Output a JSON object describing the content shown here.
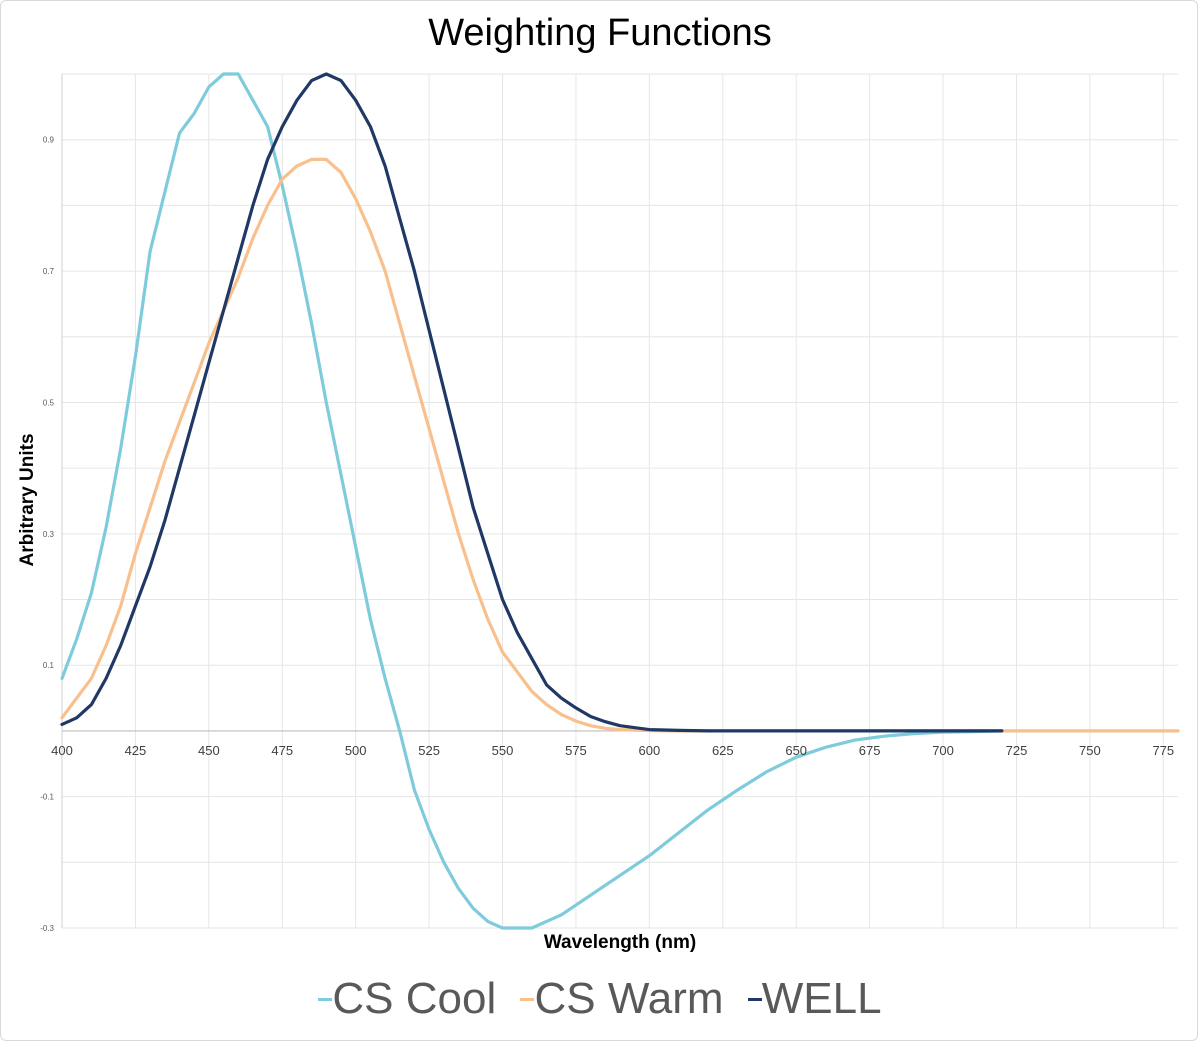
{
  "chart_data": {
    "type": "line",
    "title": "Weighting Functions",
    "xlabel": "Wavelength (nm)",
    "ylabel": "Arbitrary Units",
    "xlim": [
      400,
      780
    ],
    "ylim": [
      -0.3,
      1.0
    ],
    "x_ticks": [
      "400",
      "425",
      "450",
      "475",
      "500",
      "525",
      "550",
      "575",
      "600",
      "625",
      "650",
      "675",
      "700",
      "725",
      "750",
      "775"
    ],
    "y_ticks": [
      {
        "value": 0.9,
        "label": "0.9"
      },
      {
        "value": 0.7,
        "label": "0.7"
      },
      {
        "value": 0.5,
        "label": "0.5"
      },
      {
        "value": 0.3,
        "label": "0.3"
      },
      {
        "value": 0.1,
        "label": "0.1"
      },
      {
        "value": -0.1,
        "label": "-0.1"
      },
      {
        "value": -0.3,
        "label": "-0.3"
      }
    ],
    "grid": true,
    "legend_position": "bottom",
    "series": [
      {
        "name": "CS Cool",
        "color": "#7ecbdc",
        "x": [
          400,
          405,
          410,
          415,
          420,
          425,
          430,
          435,
          440,
          445,
          450,
          455,
          460,
          465,
          470,
          475,
          480,
          485,
          490,
          495,
          500,
          505,
          510,
          515,
          520,
          525,
          530,
          535,
          540,
          545,
          550,
          555,
          560,
          565,
          570,
          580,
          590,
          600,
          610,
          620,
          630,
          640,
          650,
          660,
          670,
          680,
          690,
          700,
          710,
          720
        ],
        "y": [
          0.08,
          0.14,
          0.21,
          0.31,
          0.43,
          0.57,
          0.73,
          0.82,
          0.91,
          0.94,
          0.98,
          1.0,
          1.0,
          0.96,
          0.92,
          0.83,
          0.73,
          0.62,
          0.5,
          0.39,
          0.28,
          0.17,
          0.08,
          0.0,
          -0.09,
          -0.15,
          -0.2,
          -0.24,
          -0.27,
          -0.29,
          -0.3,
          -0.3,
          -0.3,
          -0.29,
          -0.28,
          -0.25,
          -0.22,
          -0.19,
          -0.155,
          -0.12,
          -0.09,
          -0.062,
          -0.04,
          -0.025,
          -0.014,
          -0.008,
          -0.004,
          -0.002,
          -0.001,
          0.0
        ]
      },
      {
        "name": "CS Warm",
        "color": "#f9c08e",
        "x": [
          400,
          405,
          410,
          415,
          420,
          425,
          430,
          435,
          440,
          445,
          450,
          455,
          460,
          465,
          470,
          475,
          480,
          485,
          490,
          495,
          500,
          505,
          510,
          515,
          520,
          525,
          530,
          535,
          540,
          545,
          550,
          555,
          560,
          565,
          570,
          575,
          580,
          585,
          590,
          600,
          610,
          620,
          640,
          660,
          700,
          740,
          780
        ],
        "y": [
          0.02,
          0.05,
          0.08,
          0.13,
          0.19,
          0.27,
          0.34,
          0.41,
          0.47,
          0.53,
          0.59,
          0.64,
          0.69,
          0.75,
          0.8,
          0.84,
          0.86,
          0.87,
          0.87,
          0.85,
          0.81,
          0.76,
          0.7,
          0.62,
          0.54,
          0.46,
          0.38,
          0.3,
          0.23,
          0.17,
          0.12,
          0.09,
          0.06,
          0.04,
          0.025,
          0.015,
          0.008,
          0.004,
          0.002,
          0.0005,
          0.0,
          0.0,
          0.0,
          0.0,
          0.0,
          0.0,
          0.0
        ]
      },
      {
        "name": "WELL",
        "color": "#1f3864",
        "x": [
          400,
          405,
          410,
          415,
          420,
          425,
          430,
          435,
          440,
          445,
          450,
          455,
          460,
          465,
          470,
          475,
          480,
          485,
          490,
          495,
          500,
          505,
          510,
          515,
          520,
          525,
          530,
          535,
          540,
          545,
          550,
          555,
          560,
          565,
          570,
          575,
          580,
          585,
          590,
          600,
          610,
          620,
          640,
          660,
          680,
          700,
          720
        ],
        "y": [
          0.01,
          0.02,
          0.04,
          0.08,
          0.13,
          0.19,
          0.25,
          0.32,
          0.4,
          0.48,
          0.56,
          0.64,
          0.72,
          0.8,
          0.87,
          0.92,
          0.96,
          0.99,
          1.0,
          0.99,
          0.96,
          0.92,
          0.86,
          0.78,
          0.7,
          0.61,
          0.52,
          0.43,
          0.34,
          0.27,
          0.2,
          0.15,
          0.11,
          0.07,
          0.05,
          0.035,
          0.022,
          0.014,
          0.008,
          0.002,
          0.0008,
          0.0,
          0.0,
          0.0,
          0.0,
          0.0,
          0.0
        ]
      }
    ]
  }
}
